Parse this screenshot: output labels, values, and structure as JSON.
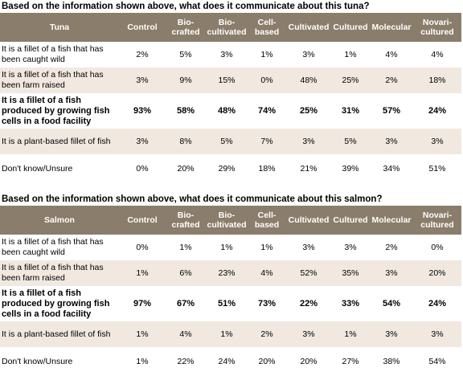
{
  "columns": [
    "Control",
    "Bio-\ncrafted",
    "Bio-\ncultivated",
    "Cell-\nbased",
    "Cultivated",
    "Cultured",
    "Molecular",
    "Novari-\ncultured"
  ],
  "colors": {
    "header_bg": "#8b7d6b",
    "row_shade": "#f1e8e0"
  },
  "sections": [
    {
      "question": "Based on the information shown above, what does it communicate about this tuna?",
      "fish": "Tuna",
      "rows": [
        {
          "label": "It is a fillet of a fish that has been caught wild",
          "values": [
            "2%",
            "5%",
            "3%",
            "1%",
            "3%",
            "1%",
            "4%",
            "4%"
          ]
        },
        {
          "label": "It is a fillet of a fish that has been farm raised",
          "values": [
            "3%",
            "9%",
            "15%",
            "0%",
            "48%",
            "25%",
            "2%",
            "18%"
          ]
        },
        {
          "label": "It is a fillet of a fish produced by growing fish cells in a food facility",
          "values": [
            "93%",
            "58%",
            "48%",
            "74%",
            "25%",
            "31%",
            "57%",
            "24%"
          ]
        },
        {
          "label": "It is a plant-based fillet of fish",
          "values": [
            "3%",
            "8%",
            "5%",
            "7%",
            "3%",
            "5%",
            "3%",
            "3%"
          ]
        },
        {
          "label": "Don't know/Unsure",
          "values": [
            "0%",
            "20%",
            "29%",
            "18%",
            "21%",
            "39%",
            "34%",
            "51%"
          ]
        }
      ]
    },
    {
      "question": "Based on the information shown above, what does it communicate about this salmon?",
      "fish": "Salmon",
      "rows": [
        {
          "label": "It is a fillet of a fish that has been caught wild",
          "values": [
            "0%",
            "1%",
            "1%",
            "1%",
            "3%",
            "3%",
            "2%",
            "0%"
          ]
        },
        {
          "label": "It is a fillet of a fish that has been farm raised",
          "values": [
            "1%",
            "6%",
            "23%",
            "4%",
            "52%",
            "35%",
            "3%",
            "20%"
          ]
        },
        {
          "label": "It is a fillet of a fish produced by growing fish cells in a food facility",
          "values": [
            "97%",
            "67%",
            "51%",
            "73%",
            "22%",
            "33%",
            "54%",
            "24%"
          ]
        },
        {
          "label": "It is a plant-based fillet of fish",
          "values": [
            "1%",
            "4%",
            "1%",
            "2%",
            "3%",
            "1%",
            "3%",
            "3%"
          ]
        },
        {
          "label": "Don't know/Unsure",
          "values": [
            "1%",
            "22%",
            "24%",
            "20%",
            "20%",
            "27%",
            "38%",
            "54%"
          ]
        }
      ]
    }
  ]
}
